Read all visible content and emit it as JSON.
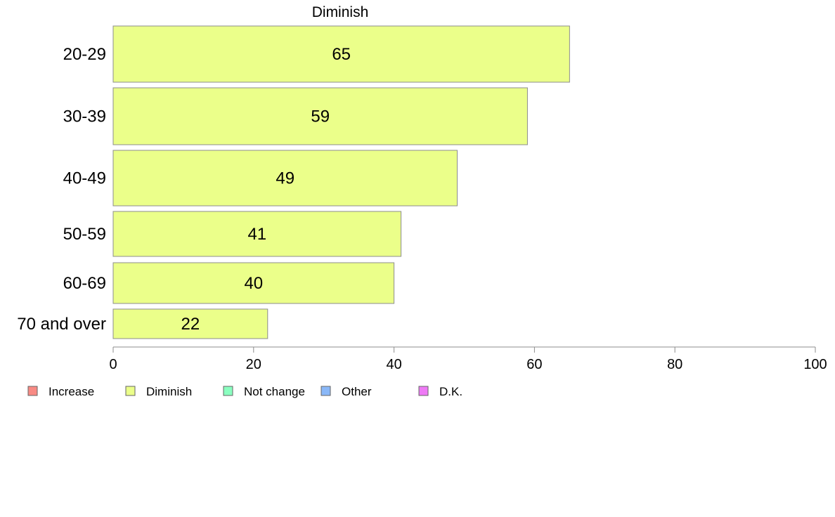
{
  "chart_data": {
    "type": "bar",
    "orientation": "horizontal",
    "title": "Diminish",
    "categories": [
      "20-29",
      "30-39",
      "40-49",
      "50-59",
      "60-69",
      "70 and over"
    ],
    "series": [
      {
        "name": "Diminish",
        "values": [
          65,
          59,
          49,
          41,
          40,
          22
        ],
        "labels": [
          "65",
          "59",
          "49",
          "41",
          "40",
          "22"
        ],
        "color": "#ebff8a"
      }
    ],
    "xlim": [
      0,
      100
    ],
    "x_ticks": [
      0,
      20,
      40,
      60,
      80,
      100
    ],
    "x_tick_labels": [
      "0",
      "20",
      "40",
      "60",
      "80",
      "100"
    ],
    "grid": false,
    "legend": {
      "placement": "bottom-left",
      "items": [
        {
          "label": "Increase",
          "color": "#f88a84"
        },
        {
          "label": "Diminish",
          "color": "#ebff8a"
        },
        {
          "label": "Not change",
          "color": "#8affc0"
        },
        {
          "label": "Other",
          "color": "#8ab8f8"
        },
        {
          "label": "D.K.",
          "color": "#ee7af5"
        }
      ]
    },
    "bar_edge_color": "#8c8c8c",
    "axis_color": "#8c8c8c"
  }
}
